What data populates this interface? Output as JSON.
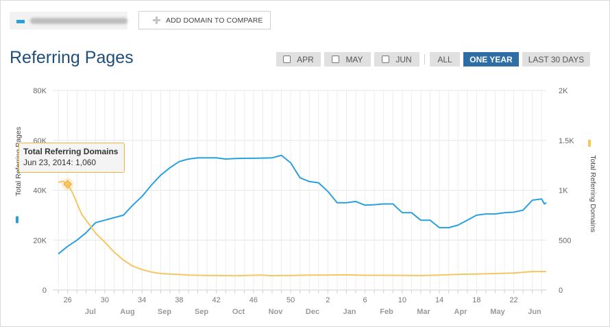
{
  "toolbar": {
    "add_domain_label": "ADD DOMAIN TO COMPARE",
    "series_color": "#29a0de"
  },
  "header": {
    "title": "Referring Pages"
  },
  "range_buttons": {
    "apr": "APR",
    "may": "MAY",
    "jun": "JUN",
    "all": "ALL",
    "one_year": "ONE YEAR",
    "last_30": "LAST 30 DAYS",
    "selected": "ONE YEAR"
  },
  "tooltip": {
    "title": "Total Referring Domains",
    "value": "Jun 23, 2014: 1,060"
  },
  "chart_data": {
    "type": "line",
    "y_left": {
      "label": "Total Referring Pages",
      "ticks": [
        "0",
        "20K",
        "40K",
        "60K",
        "80K"
      ],
      "range": [
        0,
        80000
      ]
    },
    "y_right": {
      "label": "Total Referring Domains",
      "ticks": [
        "0",
        "500",
        "1K",
        "1.5K",
        "2K"
      ],
      "range": [
        0,
        2000
      ]
    },
    "x_ticks": [
      "26",
      "30",
      "34",
      "38",
      "42",
      "46",
      "50",
      "2",
      "6",
      "10",
      "14",
      "18",
      "22"
    ],
    "x_months": [
      "Jul",
      "Aug",
      "Sep",
      "Sep",
      "Oct",
      "Nov",
      "Dec",
      "Jan",
      "Feb",
      "Mar",
      "Apr",
      "May",
      "Jun"
    ],
    "x_range_weeks": [
      24.4,
      77.5
    ],
    "grid": true,
    "series": [
      {
        "name": "Total Referring Pages",
        "axis": "left",
        "color": "#29a0de",
        "points": [
          [
            25,
            14500
          ],
          [
            26,
            17500
          ],
          [
            27,
            20000
          ],
          [
            28,
            23000
          ],
          [
            29,
            27000
          ],
          [
            30,
            28000
          ],
          [
            31,
            29000
          ],
          [
            32,
            30000
          ],
          [
            33,
            34000
          ],
          [
            34,
            37500
          ],
          [
            35,
            42000
          ],
          [
            36,
            46000
          ],
          [
            37,
            49000
          ],
          [
            38,
            51500
          ],
          [
            39,
            52500
          ],
          [
            40,
            53000
          ],
          [
            41,
            53000
          ],
          [
            42,
            53000
          ],
          [
            43,
            52500
          ],
          [
            44,
            52700
          ],
          [
            45,
            52800
          ],
          [
            46,
            52800
          ],
          [
            47,
            52900
          ],
          [
            48,
            53000
          ],
          [
            49,
            54000
          ],
          [
            50,
            51000
          ],
          [
            51,
            45000
          ],
          [
            52,
            43500
          ],
          [
            53,
            43000
          ],
          [
            54,
            39500
          ],
          [
            55,
            35000
          ],
          [
            56,
            35000
          ],
          [
            57,
            35500
          ],
          [
            58,
            34000
          ],
          [
            59,
            34200
          ],
          [
            60,
            34500
          ],
          [
            61,
            34500
          ],
          [
            62,
            31000
          ],
          [
            63,
            31000
          ],
          [
            64,
            28000
          ],
          [
            65,
            28000
          ],
          [
            66,
            25000
          ],
          [
            67,
            25000
          ],
          [
            68,
            26000
          ],
          [
            69,
            28000
          ],
          [
            70,
            30000
          ],
          [
            71,
            30500
          ],
          [
            72,
            30500
          ],
          [
            73,
            31000
          ],
          [
            74,
            31200
          ],
          [
            75,
            32000
          ],
          [
            75.5,
            34000
          ],
          [
            76,
            36000
          ],
          [
            77,
            36500
          ],
          [
            77.3,
            34500
          ],
          [
            77.5,
            35000
          ]
        ]
      },
      {
        "name": "Total Referring Domains",
        "axis": "right",
        "color": "#f7c560",
        "points": [
          [
            25,
            1080
          ],
          [
            25.5,
            1090
          ],
          [
            26,
            1060
          ],
          [
            26.5,
            980
          ],
          [
            27,
            870
          ],
          [
            27.5,
            760
          ],
          [
            28,
            700
          ],
          [
            29,
            570
          ],
          [
            30,
            480
          ],
          [
            31,
            380
          ],
          [
            32,
            300
          ],
          [
            33,
            240
          ],
          [
            34,
            205
          ],
          [
            35,
            180
          ],
          [
            36,
            165
          ],
          [
            37,
            160
          ],
          [
            38,
            155
          ],
          [
            39,
            150
          ],
          [
            40,
            148
          ],
          [
            41,
            146
          ],
          [
            42,
            145
          ],
          [
            43,
            144
          ],
          [
            44,
            143
          ],
          [
            45,
            145
          ],
          [
            46,
            148
          ],
          [
            47,
            150
          ],
          [
            48,
            143
          ],
          [
            49,
            145
          ],
          [
            50,
            145
          ],
          [
            51,
            148
          ],
          [
            52,
            150
          ],
          [
            54,
            150
          ],
          [
            56,
            152
          ],
          [
            58,
            148
          ],
          [
            60,
            148
          ],
          [
            62,
            147
          ],
          [
            64,
            144
          ],
          [
            66,
            150
          ],
          [
            68,
            156
          ],
          [
            70,
            160
          ],
          [
            72,
            165
          ],
          [
            74,
            170
          ],
          [
            76,
            185
          ],
          [
            77.5,
            185
          ]
        ]
      }
    ],
    "highlight": {
      "series": "Total Referring Domains",
      "x": 26,
      "y": 1060
    }
  }
}
